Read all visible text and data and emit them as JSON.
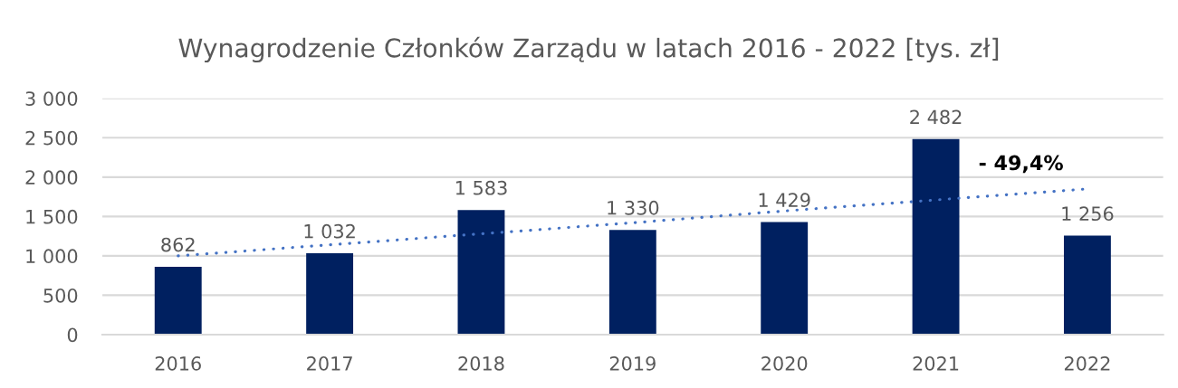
{
  "chart_data": {
    "type": "bar",
    "title": "Wynagrodzenie Członków Zarządu w latach 2016 - 2022 [tys. zł]",
    "categories": [
      "2016",
      "2017",
      "2018",
      "2019",
      "2020",
      "2021",
      "2022"
    ],
    "series": [
      {
        "color": "#002060",
        "values": [
          862,
          1032,
          1583,
          1330,
          1429,
          2482,
          1256
        ],
        "value_labels": [
          "862",
          "1 032",
          "1 583",
          "1 330",
          "1 429",
          "2 482",
          "1 256"
        ]
      },
      {
        "type": "line",
        "values": [
          1000,
          1140,
          1280,
          1420,
          1570,
          1710,
          1850
        ],
        "color": "#4472c4",
        "line_style": "dotted",
        "marker": "none"
      }
    ],
    "ylim": [
      0,
      3000
    ],
    "yticks": [
      {
        "value": 0,
        "label": "0"
      },
      {
        "value": 500,
        "label": "500"
      },
      {
        "value": 1000,
        "label": "1 000"
      },
      {
        "value": 1500,
        "label": "1 500"
      },
      {
        "value": 2000,
        "label": "2 000"
      },
      {
        "value": 2500,
        "label": "2 500"
      },
      {
        "value": 3000,
        "label": "3 000"
      }
    ],
    "grid": "y",
    "annotations": [
      "- 49,4%"
    ]
  }
}
